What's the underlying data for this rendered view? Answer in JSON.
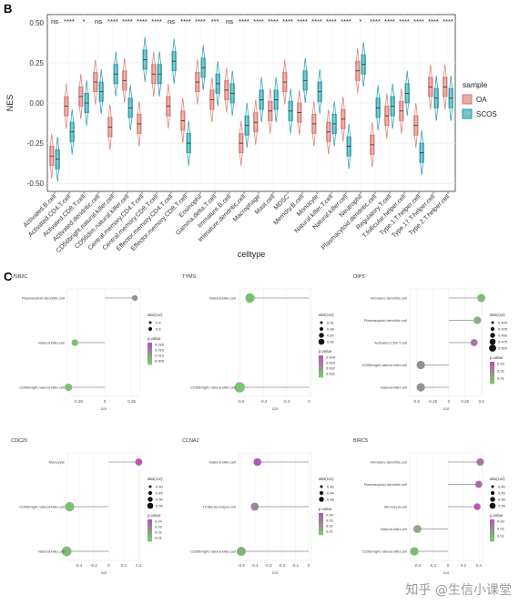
{
  "panels": {
    "b_label": "B",
    "c_label": "C"
  },
  "watermark": "知乎 @生信小课堂",
  "chart_data": [
    {
      "type": "box",
      "title": "",
      "xlabel": "celltype",
      "ylabel": "NES",
      "ylim": [
        -0.55,
        0.55
      ],
      "yticks": [
        -0.5,
        -0.25,
        0.0,
        0.25,
        0.5
      ],
      "legend": {
        "title": "sample",
        "position": "right"
      },
      "colors": {
        "OA": "#d9756e",
        "SCOS": "#1f9aa6"
      },
      "categories": [
        "Activated.B.cell",
        "Activated.CD4.T.cell",
        "Activated.CD8.T.cell",
        "Activated.dendritic.cell",
        "CD56bright.natural.killer.cell",
        "CD56dim.natural.killer.cell",
        "Central.memory.CD4.T.cell",
        "Central.memory.CD8.T.cell",
        "Effector.memory.CD4.T.cell",
        "Effector.memory.CD8.T.cell",
        "Eosinophil",
        "Gamma.delta.T.cell",
        "Immature.B.cell",
        "Immature.dendritic.cell",
        "Macrophage",
        "Mast.cell",
        "MDSC",
        "Memory.B.cell",
        "Monocyte",
        "Natural.killer.T.cell",
        "Natural.killer.cell",
        "Neutrophil",
        "Plasmacytoid.dendritic.cell",
        "Regulatory.T.cell",
        "T.follicular.helper.cell",
        "Type.1.T.helper.cell",
        "Type.17.T.helper.cell",
        "Type.2.T.helper.cell"
      ],
      "significance": [
        "ns",
        "****",
        "*",
        "ns",
        "****",
        "****",
        "****",
        "****",
        "ns",
        "****",
        "****",
        "***",
        "ns",
        "****",
        "****",
        "****",
        "****",
        "****",
        "****",
        "****",
        "****",
        "*",
        "****",
        "****",
        "****",
        "****",
        "****",
        "****"
      ],
      "series": [
        {
          "name": "OA",
          "medians": [
            -0.33,
            -0.02,
            0.04,
            0.13,
            -0.15,
            0.14,
            -0.13,
            0.18,
            -0.02,
            -0.11,
            0.13,
            0.02,
            0.08,
            -0.25,
            -0.12,
            -0.05,
            0.13,
            -0.06,
            -0.13,
            -0.18,
            -0.1,
            0.2,
            -0.26,
            -0.08,
            -0.05,
            -0.14,
            0.1,
            0.1
          ]
        },
        {
          "name": "SCOS",
          "medians": [
            -0.35,
            -0.18,
            0.0,
            0.07,
            0.18,
            -0.03,
            0.27,
            0.18,
            0.26,
            -0.25,
            0.22,
            0.12,
            0.06,
            -0.14,
            0.02,
            0.02,
            -0.05,
            0.14,
            0.07,
            -0.13,
            -0.27,
            0.24,
            -0.03,
            -0.02,
            0.06,
            -0.31,
            0.03,
            0.03
          ]
        }
      ]
    },
    {
      "type": "lollipop",
      "title": "USB2C",
      "xlabel": "cor",
      "xlim": [
        -0.35,
        0.33
      ],
      "xticks": [
        -0.25,
        0.0,
        0.25
      ],
      "size_legend": {
        "title": "abs(cor)",
        "values": [
          "0.4",
          "0.6"
        ]
      },
      "color_legend": {
        "title": "p.value",
        "values": [
          "0.020",
          "0.015",
          "0.010",
          "0.005"
        ]
      },
      "categories": [
        "Plasmacytoid.dendritic.cell",
        "Natural.killer.cell",
        "CD56bright.natural.killer.cell"
      ],
      "values": [
        0.28,
        -0.28,
        -0.34
      ],
      "pvalues": [
        0.02,
        0.003,
        0.003
      ]
    },
    {
      "type": "lollipop",
      "title": "TYMS",
      "xlabel": "cor",
      "xlim": [
        -0.62,
        0.02
      ],
      "xticks": [
        -0.6,
        -0.4,
        -0.2,
        0.0
      ],
      "size_legend": {
        "title": "abs(cor)",
        "values": [
          "0.51",
          "0.48",
          "0.87",
          "0.90"
        ]
      },
      "color_legend": {
        "title": "p.value",
        "values": [
          "0.004",
          "0.003",
          "0.002",
          "0.001"
        ]
      },
      "categories": [
        "Natural.killer.cell",
        "CD56bright.natural.killer.cell"
      ],
      "values": [
        -0.52,
        -0.61
      ],
      "pvalues": [
        0.004,
        0.001
      ]
    },
    {
      "type": "lollipop",
      "title": "OIP5",
      "xlabel": "cor",
      "xlim": [
        -0.6,
        0.52
      ],
      "xticks": [
        -0.5,
        -0.25,
        0.0,
        0.25,
        0.5
      ],
      "size_legend": {
        "title": "abs(cor)",
        "values": [
          "0.400",
          "0.425",
          "0.450",
          "0.475",
          "0.500"
        ]
      },
      "color_legend": {
        "title": "p.value",
        "values": [
          "0.03",
          "0.02",
          "0.01"
        ]
      },
      "categories": [
        "Immature.dendritic.cell",
        "Plasmacytoid.dendritic.cell",
        "Activated.CD4.T.cell",
        "CD56bright.natural.killer.cell",
        "Natural.killer.cell"
      ],
      "values": [
        0.5,
        0.44,
        0.39,
        -0.43,
        -0.43
      ],
      "pvalues": [
        0.005,
        0.01,
        0.03,
        0.02,
        0.02
      ]
    },
    {
      "type": "lollipop",
      "title": "CDC20",
      "xlabel": "cor",
      "xlim": [
        -0.55,
        0.42
      ],
      "xticks": [
        -0.4,
        -0.2,
        0.0,
        0.2,
        0.4
      ],
      "size_legend": {
        "title": "abs(cor)",
        "values": [
          "0.40",
          "0.45",
          "0.50",
          "0.55"
        ]
      },
      "color_legend": {
        "title": "p.value",
        "values": [
          "0.04",
          "0.03",
          "0.02",
          "0.01"
        ]
      },
      "categories": [
        "Monocyte",
        "CD56bright.natural.killer.cell",
        "Natural.killer.cell"
      ],
      "values": [
        0.4,
        -0.52,
        -0.56
      ],
      "pvalues": [
        0.04,
        0.005,
        0.005
      ]
    },
    {
      "type": "lollipop",
      "title": "CCNA2",
      "xlabel": "cor",
      "xlim": [
        -0.52,
        0.02
      ],
      "xticks": [
        -0.5,
        -0.4,
        -0.3,
        -0.2,
        -0.1,
        0.0
      ],
      "size_legend": {
        "title": "abs(cor)",
        "values": [
          "0.40",
          "0.44",
          "0.48"
        ]
      },
      "color_legend": {
        "title": "p.value",
        "values": [
          "0.04",
          "0.03",
          "0.02",
          "0.01"
        ]
      },
      "categories": [
        "Natural.killer.cell",
        "T.follicular.helper.cell",
        "CD56bright.natural.killer.cell"
      ],
      "values": [
        -0.38,
        -0.4,
        -0.5
      ],
      "pvalues": [
        0.04,
        0.025,
        0.01
      ]
    },
    {
      "type": "lollipop",
      "title": "BIRC5",
      "xlabel": "cor",
      "xlim": [
        -0.5,
        0.45
      ],
      "xticks": [
        -0.4,
        -0.2,
        0.0,
        0.2,
        0.4
      ],
      "size_legend": {
        "title": "abs(cor)",
        "values": [
          "0.40",
          "0.45",
          "0.50",
          "0.55"
        ]
      },
      "color_legend": {
        "title": "p.value",
        "values": [
          "0.03",
          "0.02",
          "0.01"
        ]
      },
      "categories": [
        "Immature.dendritic.cell",
        "Plasmacytoid.dendritic.cell",
        "Memory.B.cell",
        "Natural.killer.cell",
        "CD56bright.natural.killer.cell"
      ],
      "values": [
        0.42,
        0.4,
        0.38,
        -0.4,
        -0.44
      ],
      "pvalues": [
        0.03,
        0.035,
        0.04,
        0.01,
        0.005
      ]
    }
  ]
}
